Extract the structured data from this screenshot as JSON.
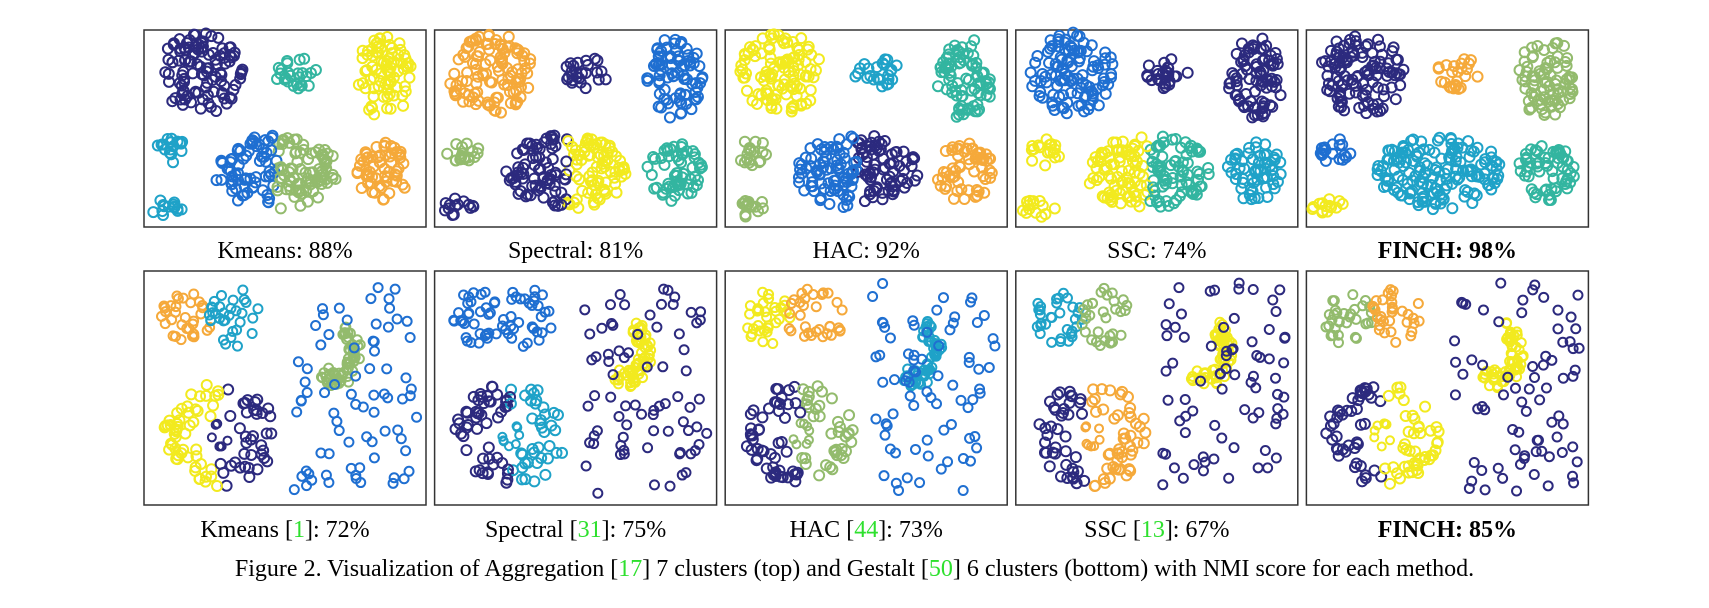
{
  "figure": {
    "rows": [
      [
        {
          "before": "Kmeans: 88%"
        },
        {
          "before": "Spectral: 81%"
        },
        {
          "before": "HAC: 92%"
        },
        {
          "before": "SSC: 74%"
        },
        {
          "before": "FINCH: 98%",
          "bold": true
        }
      ],
      [
        {
          "before": "Kmeans [",
          "ref": "1",
          "after": "]: 72%"
        },
        {
          "before": "Spectral [",
          "ref": "31",
          "after": "]: 75%"
        },
        {
          "before": "HAC [",
          "ref": "44",
          "after": "]: 73%"
        },
        {
          "before": "SSC [",
          "ref": "13",
          "after": "]: 67%"
        },
        {
          "before": "FINCH: 85%",
          "bold": true
        }
      ]
    ],
    "caption": {
      "p1": "Figure 2. Visualization of Aggregation [",
      "r1": "17",
      "p2": "] 7 clusters (top) and Gestalt [",
      "r2": "50",
      "p3": "] 6 clusters (bottom) with NMI score for each method."
    }
  }
}
